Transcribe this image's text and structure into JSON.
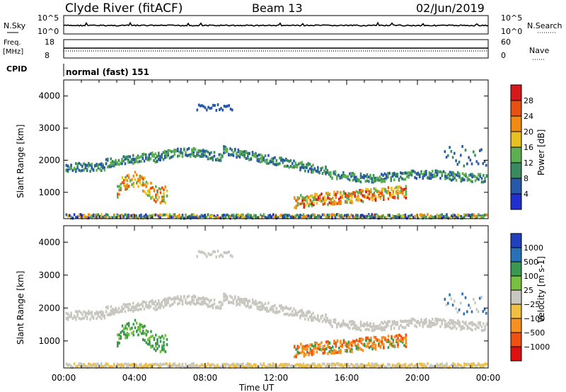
{
  "header": {
    "station": "Clyde River (fitACF)",
    "beam": "Beam 13",
    "date": "02/Jun/2019"
  },
  "top_panels": {
    "nsky_label": "N.Sky",
    "nsky_ticks": [
      "10^5",
      "10^0"
    ],
    "nsearch_label": "N.Search",
    "nsearch_ticks": [
      "10^5",
      "10^0"
    ],
    "freq_label": "Freq.",
    "freq_unit": "[MHz]",
    "freq_ticks": [
      "18",
      "8"
    ],
    "nave_label": "Nave",
    "nave_ticks": [
      "60",
      "0"
    ],
    "cpid_label": "CPID",
    "cpid_value": "normal (fast) 151"
  },
  "colors": {
    "power": [
      "#2030d0",
      "#2858a8",
      "#3a8a60",
      "#5cb050",
      "#e8c020",
      "#f08a10",
      "#e85010",
      "#d81818"
    ],
    "velocity": [
      "#e01010",
      "#f05010",
      "#f89020",
      "#f0c040",
      "#c8c8c0",
      "#78c040",
      "#3a9850",
      "#2870b8",
      "#2040c0"
    ]
  },
  "chart_data": [
    {
      "type": "heatmap",
      "name_shown": "Power",
      "ylabel": "Slant Range [km]",
      "y_ticks": [
        "1000",
        "2000",
        "3000",
        "4000"
      ],
      "ylim": [
        180,
        4500
      ],
      "xlim_hours": [
        0,
        24
      ],
      "colorbar_label": "Power [dB]",
      "colorbar_ticks": [
        "4",
        "8",
        "12",
        "16",
        "20",
        "24",
        "28"
      ],
      "colorbar_range": [
        0,
        32
      ]
    },
    {
      "type": "heatmap",
      "name_shown": "Velocity",
      "ylabel": "Slant Range [km]",
      "y_ticks": [
        "1000",
        "2000",
        "3000",
        "4000"
      ],
      "ylim": [
        180,
        4500
      ],
      "xlim_hours": [
        0,
        24
      ],
      "colorbar_label": "Velocity [m s-1]",
      "colorbar_ticks": [
        "1000",
        "500",
        "100",
        "25",
        "−25",
        "−100",
        "−500",
        "−1000"
      ],
      "x_ticks": [
        "00:00",
        "04:00",
        "08:00",
        "12:00",
        "16:00",
        "20:00",
        "00:00"
      ],
      "xlabel": "Time UT"
    }
  ]
}
